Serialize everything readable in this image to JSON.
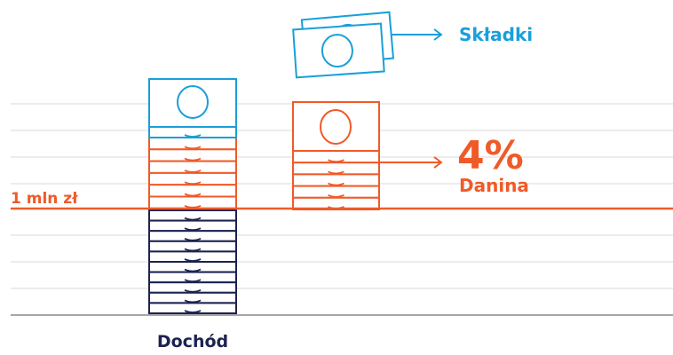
{
  "labels": {
    "threshold": "1 mln zł",
    "income": "Dochód",
    "contributions": "Składki",
    "percent": "4%",
    "tax": "Danina"
  },
  "colors": {
    "navy": "#1c2250",
    "orange": "#f05a28",
    "blue": "#1a9fd8",
    "grid": "#d9d9d9",
    "baseline": "#a6a6a6"
  },
  "stacks": {
    "income_below_threshold": 10,
    "income_above_threshold": 6,
    "income_contribution_bills": 1,
    "tax_stack_bills": 6
  }
}
